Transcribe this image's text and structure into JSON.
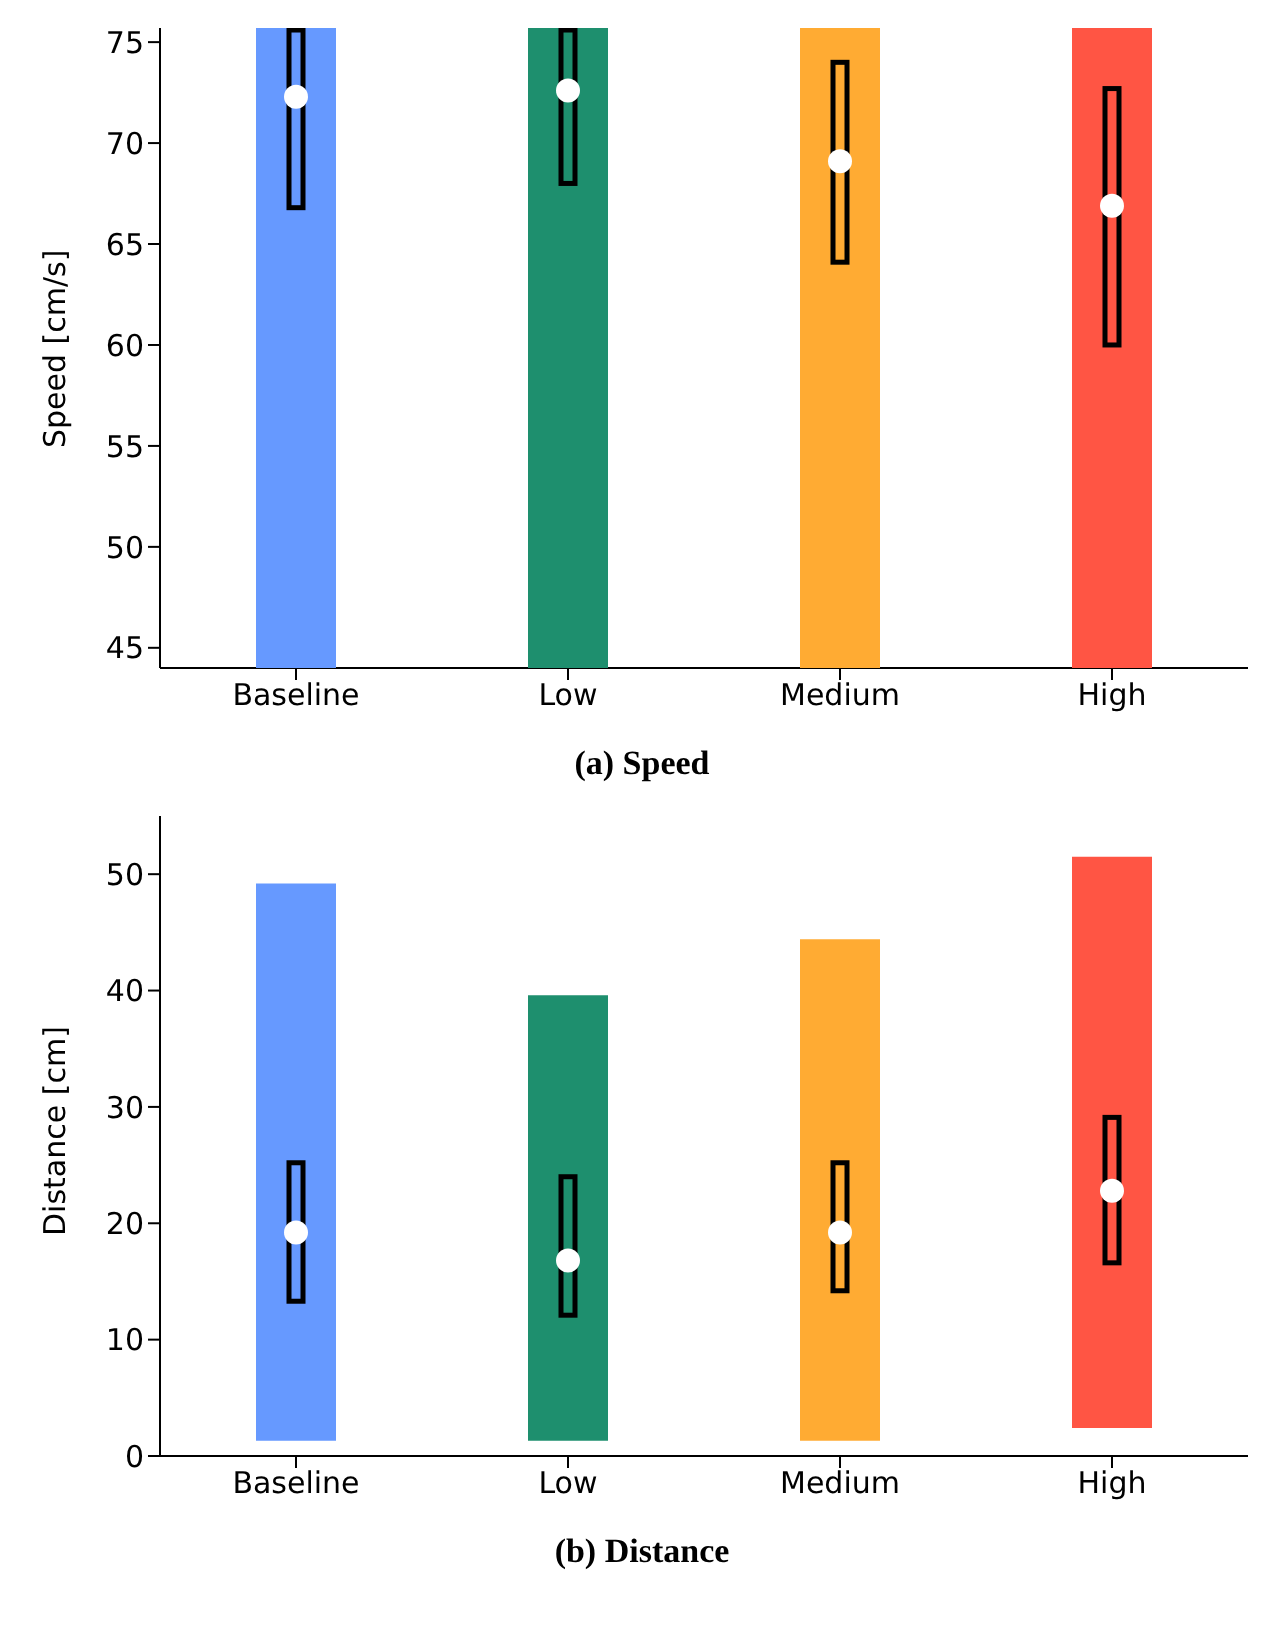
{
  "chart_data": [
    {
      "type": "box",
      "title": "(a) Speed",
      "ylabel": "Speed [cm/s]",
      "categories": [
        "Baseline",
        "Low",
        "Medium",
        "High"
      ],
      "colors": [
        "#6699ff",
        "#1e8f6e",
        "#ffab33",
        "#ff5544"
      ],
      "ylim": [
        44,
        75.7
      ],
      "yticks": [
        45,
        50,
        55,
        60,
        65,
        70,
        75
      ],
      "grid": false,
      "boxes": [
        {
          "low": 44,
          "q1": 66.8,
          "median": 72.3,
          "q3": 75.6,
          "high": 75.7
        },
        {
          "low": 44,
          "q1": 68.0,
          "median": 72.6,
          "q3": 75.6,
          "high": 75.7
        },
        {
          "low": 44,
          "q1": 64.1,
          "median": 69.1,
          "q3": 74.0,
          "high": 75.7
        },
        {
          "low": 44,
          "q1": 60.0,
          "median": 66.9,
          "q3": 72.7,
          "high": 75.7
        }
      ]
    },
    {
      "type": "box",
      "title": "(b) Distance",
      "ylabel": "Distance [cm]",
      "categories": [
        "Baseline",
        "Low",
        "Medium",
        "High"
      ],
      "colors": [
        "#6699ff",
        "#1e8f6e",
        "#ffab33",
        "#ff5544"
      ],
      "ylim": [
        0,
        55
      ],
      "yticks": [
        0,
        10,
        20,
        30,
        40,
        50
      ],
      "grid": false,
      "boxes": [
        {
          "low": 1.3,
          "q1": 13.3,
          "median": 19.2,
          "q3": 25.2,
          "high": 49.2
        },
        {
          "low": 1.3,
          "q1": 12.1,
          "median": 16.8,
          "q3": 24.0,
          "high": 39.6
        },
        {
          "low": 1.3,
          "q1": 14.2,
          "median": 19.2,
          "q3": 25.2,
          "high": 44.4
        },
        {
          "low": 2.4,
          "q1": 16.6,
          "median": 22.8,
          "q3": 29.1,
          "high": 51.5
        }
      ]
    }
  ]
}
